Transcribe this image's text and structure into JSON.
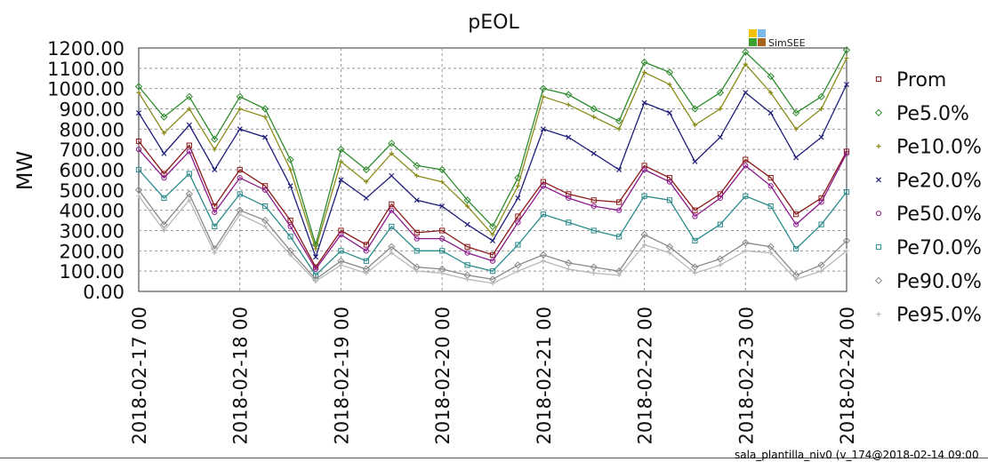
{
  "footer": {
    "text": "sala_plantilla_niv0 (v_174@2018-02-14 09:00"
  },
  "logo": {
    "text": "SimSEE",
    "colors": [
      "#f2c200",
      "#7ab8ea",
      "#3aa12e",
      "#a8641a"
    ]
  },
  "chart_data": {
    "type": "line",
    "title": "pEOL",
    "xlabel": "",
    "ylabel": "MW",
    "ylim": [
      0,
      1200
    ],
    "yticks": [
      0,
      100,
      200,
      300,
      400,
      500,
      600,
      700,
      800,
      900,
      1000,
      1100,
      1200
    ],
    "ytick_labels": [
      "0.00",
      "100.00",
      "200.00",
      "300.00",
      "400.00",
      "500.00",
      "600.00",
      "700.00",
      "800.00",
      "900.00",
      "1000.00",
      "1100.00",
      "1200.00"
    ],
    "xlim": [
      "2018-02-17 00",
      "2018-02-24 00"
    ],
    "xtick_labels": [
      "2018-02-17 00",
      "2018-02-18 00",
      "2018-02-19 00",
      "2018-02-20 00",
      "2018-02-21 00",
      "2018-02-22 00",
      "2018-02-23 00",
      "2018-02-24 00"
    ],
    "grid": true,
    "legend_position": "right",
    "x": [
      "2018-02-17 00",
      "2018-02-17 06",
      "2018-02-17 12",
      "2018-02-17 18",
      "2018-02-18 00",
      "2018-02-18 06",
      "2018-02-18 12",
      "2018-02-18 18",
      "2018-02-19 00",
      "2018-02-19 06",
      "2018-02-19 12",
      "2018-02-19 18",
      "2018-02-20 00",
      "2018-02-20 06",
      "2018-02-20 12",
      "2018-02-20 18",
      "2018-02-21 00",
      "2018-02-21 06",
      "2018-02-21 12",
      "2018-02-21 18",
      "2018-02-22 00",
      "2018-02-22 06",
      "2018-02-22 12",
      "2018-02-22 18",
      "2018-02-23 00",
      "2018-02-23 06",
      "2018-02-23 12",
      "2018-02-23 18",
      "2018-02-24 00"
    ],
    "series": [
      {
        "name": "Prom",
        "color": "#8b1a1a",
        "marker": "square",
        "values": [
          740,
          580,
          720,
          420,
          600,
          520,
          350,
          120,
          300,
          230,
          430,
          290,
          300,
          220,
          180,
          370,
          540,
          480,
          450,
          440,
          620,
          560,
          400,
          480,
          650,
          560,
          380,
          460,
          690
        ]
      },
      {
        "name": "Pe5.0%",
        "color": "#2e8b2e",
        "marker": "diamond",
        "values": [
          1010,
          860,
          960,
          750,
          960,
          900,
          650,
          230,
          700,
          600,
          730,
          620,
          600,
          450,
          320,
          560,
          1000,
          970,
          900,
          840,
          1130,
          1080,
          900,
          980,
          1180,
          1060,
          880,
          960,
          1190
        ]
      },
      {
        "name": "Pe10.0%",
        "color": "#8b8b1a",
        "marker": "plus",
        "values": [
          980,
          780,
          900,
          700,
          900,
          860,
          600,
          210,
          640,
          540,
          680,
          570,
          540,
          420,
          280,
          520,
          960,
          920,
          860,
          800,
          1080,
          1020,
          820,
          900,
          1120,
          980,
          800,
          900,
          1150
        ]
      },
      {
        "name": "Pe20.0%",
        "color": "#1f1f7a",
        "marker": "cross",
        "values": [
          880,
          680,
          820,
          600,
          800,
          760,
          520,
          170,
          550,
          460,
          570,
          450,
          420,
          330,
          250,
          460,
          800,
          760,
          680,
          600,
          930,
          880,
          640,
          760,
          980,
          880,
          660,
          760,
          1020
        ]
      },
      {
        "name": "Pe50.0%",
        "color": "#8b1a8b",
        "marker": "circle",
        "values": [
          700,
          560,
          690,
          390,
          560,
          500,
          320,
          110,
          280,
          200,
          400,
          260,
          260,
          190,
          150,
          340,
          520,
          460,
          420,
          400,
          600,
          540,
          370,
          460,
          620,
          520,
          330,
          440,
          680
        ]
      },
      {
        "name": "Pe70.0%",
        "color": "#2a8a8a",
        "marker": "square",
        "values": [
          600,
          460,
          580,
          320,
          480,
          420,
          270,
          80,
          200,
          150,
          320,
          200,
          200,
          130,
          100,
          230,
          380,
          340,
          300,
          270,
          470,
          450,
          250,
          330,
          470,
          420,
          210,
          330,
          490
        ]
      },
      {
        "name": "Pe90.0%",
        "color": "#888888",
        "marker": "diamond",
        "values": [
          500,
          330,
          480,
          210,
          400,
          350,
          200,
          60,
          150,
          110,
          220,
          120,
          110,
          80,
          60,
          130,
          180,
          140,
          120,
          100,
          280,
          220,
          120,
          160,
          240,
          220,
          80,
          130,
          250
        ]
      },
      {
        "name": "Pe95.0%",
        "color": "#b8b8b8",
        "marker": "plus",
        "values": [
          470,
          300,
          450,
          190,
          380,
          320,
          180,
          50,
          130,
          90,
          190,
          100,
          90,
          60,
          40,
          100,
          150,
          110,
          90,
          80,
          230,
          190,
          90,
          130,
          200,
          190,
          60,
          100,
          200
        ]
      }
    ]
  }
}
